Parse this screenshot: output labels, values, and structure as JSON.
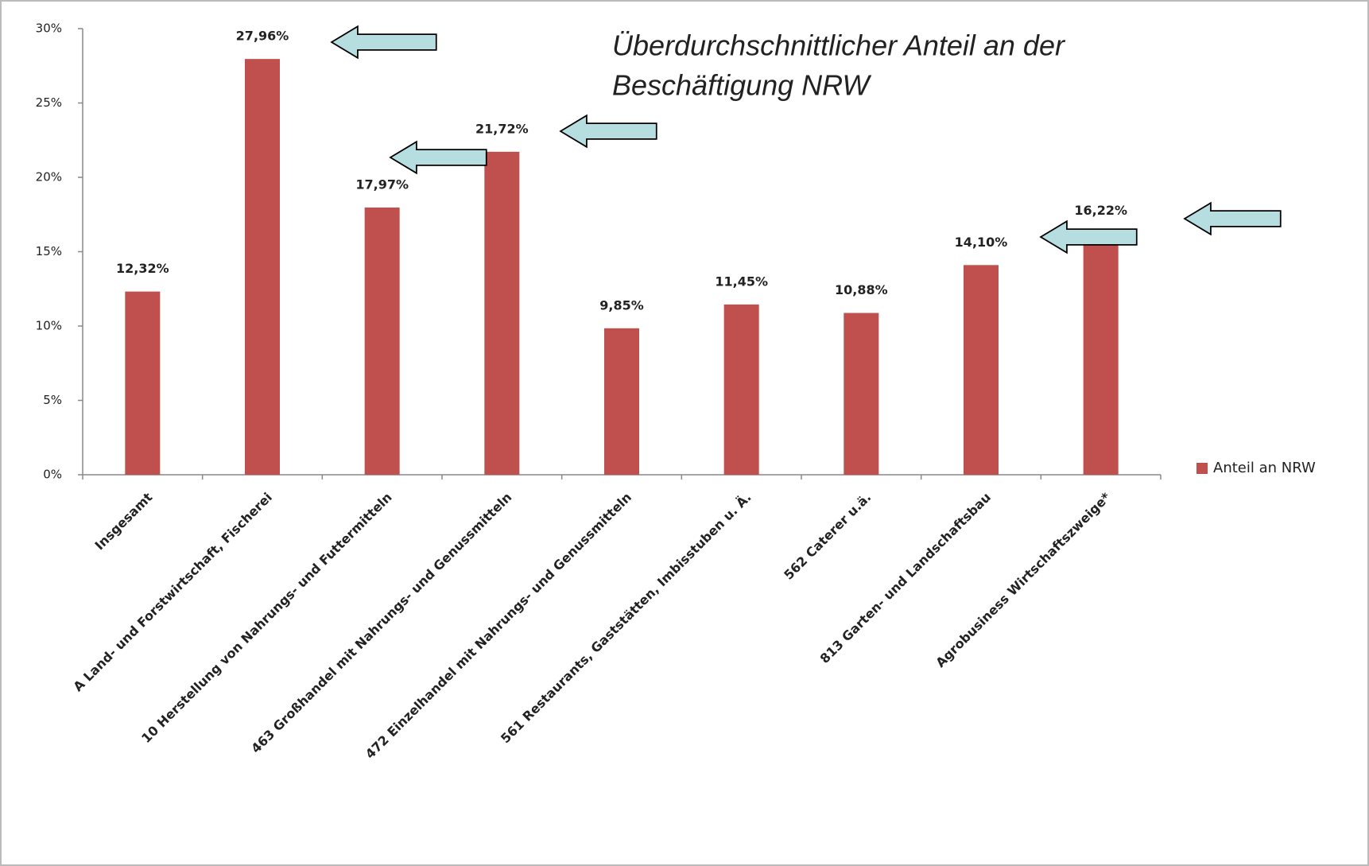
{
  "chart_data": {
    "type": "bar",
    "annotation": [
      "Überdurchschnittlicher Anteil an der",
      "Beschäftigung NRW"
    ],
    "categories": [
      "Insgesamt",
      "A Land- und Forstwirtschaft, Fischerei",
      "10 Herstellung von Nahrungs- und Futtermitteln",
      "463 Großhandel mit Nahrungs- und Genussmitteln",
      "472 Einzelhandel mit Nahrungs- und Genussmitteln",
      "561 Restaurants, Gaststätten, Imbisstuben u. Ä.",
      "562 Caterer u.ä.",
      "813 Garten- und Landschaftsbau",
      "Agrobusiness Wirtschaftszweige*"
    ],
    "series": [
      {
        "name": "Anteil an NRW",
        "color": "#c0504d",
        "values": [
          12.32,
          27.96,
          17.97,
          21.72,
          9.85,
          11.45,
          10.88,
          14.1,
          16.22
        ],
        "value_labels": [
          "12,32%",
          "27,96%",
          "17,97%",
          "21,72%",
          "9,85%",
          "11,45%",
          "10,88%",
          "14,10%",
          "16,22%"
        ]
      }
    ],
    "ylim": [
      0,
      30
    ],
    "yticks": [
      {
        "value": 0,
        "label": "0%"
      },
      {
        "value": 5,
        "label": "5%"
      },
      {
        "value": 10,
        "label": "10%"
      },
      {
        "value": 15,
        "label": "15%"
      },
      {
        "value": 20,
        "label": "20%"
      },
      {
        "value": 25,
        "label": "25%"
      },
      {
        "value": 30,
        "label": "30%"
      }
    ],
    "legend": "right"
  }
}
